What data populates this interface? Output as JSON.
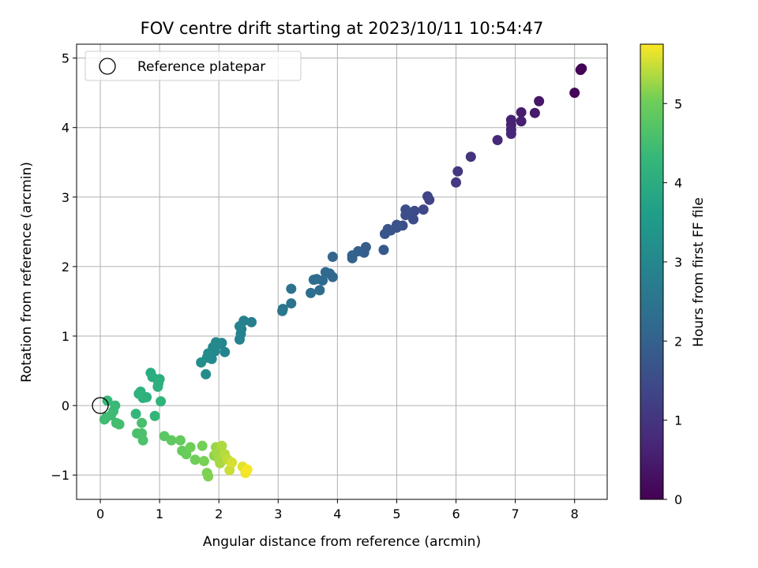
{
  "chart_data": {
    "type": "scatter",
    "title": "FOV centre drift starting at 2023/10/11 10:54:47",
    "xlabel": "Angular distance from reference (arcmin)",
    "ylabel": "Rotation from reference (arcmin)",
    "xlim": [
      -0.4,
      8.55
    ],
    "ylim": [
      -1.35,
      5.2
    ],
    "xticks": [
      0,
      1,
      2,
      3,
      4,
      5,
      6,
      7,
      8
    ],
    "yticks": [
      -1,
      0,
      1,
      2,
      3,
      4,
      5
    ],
    "xtick_labels": [
      "0",
      "1",
      "2",
      "3",
      "4",
      "5",
      "6",
      "7",
      "8"
    ],
    "ytick_labels": [
      "−1",
      "0",
      "1",
      "2",
      "3",
      "4",
      "5"
    ],
    "grid": true,
    "legend_position": "top-left",
    "legend": [
      {
        "label": "Reference platepar",
        "marker": "open-circle"
      }
    ],
    "reference_point": {
      "x": 0,
      "y": 0
    },
    "colormap": "viridis",
    "colorbar": {
      "label": "Hours from first FF file",
      "range": [
        0,
        5.75
      ],
      "ticks": [
        0,
        1,
        2,
        3,
        4,
        5
      ],
      "tick_labels": [
        "0",
        "1",
        "2",
        "3",
        "4",
        "5"
      ]
    },
    "points": [
      {
        "x": 8.12,
        "y": 4.85,
        "c": 0.02
      },
      {
        "x": 8.1,
        "y": 4.83,
        "c": 0.05
      },
      {
        "x": 8.0,
        "y": 4.5,
        "c": 0.1
      },
      {
        "x": 7.4,
        "y": 4.38,
        "c": 0.4
      },
      {
        "x": 7.33,
        "y": 4.21,
        "c": 0.45
      },
      {
        "x": 7.1,
        "y": 4.22,
        "c": 0.5
      },
      {
        "x": 7.1,
        "y": 4.09,
        "c": 0.55
      },
      {
        "x": 6.93,
        "y": 4.11,
        "c": 0.6
      },
      {
        "x": 6.93,
        "y": 4.04,
        "c": 0.63
      },
      {
        "x": 6.93,
        "y": 3.97,
        "c": 0.66
      },
      {
        "x": 6.93,
        "y": 3.91,
        "c": 0.7
      },
      {
        "x": 6.7,
        "y": 3.82,
        "c": 0.75
      },
      {
        "x": 6.25,
        "y": 3.58,
        "c": 0.95
      },
      {
        "x": 6.03,
        "y": 3.37,
        "c": 1.05
      },
      {
        "x": 6.0,
        "y": 3.21,
        "c": 1.1
      },
      {
        "x": 5.55,
        "y": 2.96,
        "c": 1.3
      },
      {
        "x": 5.52,
        "y": 3.01,
        "c": 1.35
      },
      {
        "x": 5.45,
        "y": 2.82,
        "c": 1.4
      },
      {
        "x": 5.3,
        "y": 2.8,
        "c": 1.45
      },
      {
        "x": 5.28,
        "y": 2.68,
        "c": 1.5
      },
      {
        "x": 5.2,
        "y": 2.78,
        "c": 1.52
      },
      {
        "x": 5.15,
        "y": 2.82,
        "c": 1.55
      },
      {
        "x": 5.15,
        "y": 2.74,
        "c": 1.57
      },
      {
        "x": 5.1,
        "y": 2.59,
        "c": 1.6
      },
      {
        "x": 5.0,
        "y": 2.56,
        "c": 1.65
      },
      {
        "x": 5.0,
        "y": 2.6,
        "c": 1.67
      },
      {
        "x": 4.9,
        "y": 2.52,
        "c": 1.7
      },
      {
        "x": 4.85,
        "y": 2.54,
        "c": 1.72
      },
      {
        "x": 4.8,
        "y": 2.47,
        "c": 1.75
      },
      {
        "x": 4.78,
        "y": 2.24,
        "c": 1.8
      },
      {
        "x": 4.48,
        "y": 2.28,
        "c": 1.9
      },
      {
        "x": 4.45,
        "y": 2.2,
        "c": 1.93
      },
      {
        "x": 4.35,
        "y": 2.22,
        "c": 1.96
      },
      {
        "x": 4.25,
        "y": 2.12,
        "c": 2.0
      },
      {
        "x": 4.25,
        "y": 2.16,
        "c": 2.02
      },
      {
        "x": 3.92,
        "y": 2.14,
        "c": 2.1
      },
      {
        "x": 3.92,
        "y": 1.85,
        "c": 2.15
      },
      {
        "x": 3.87,
        "y": 1.9,
        "c": 2.18
      },
      {
        "x": 3.8,
        "y": 1.92,
        "c": 2.2
      },
      {
        "x": 3.75,
        "y": 1.8,
        "c": 2.23
      },
      {
        "x": 3.7,
        "y": 1.66,
        "c": 2.26
      },
      {
        "x": 3.65,
        "y": 1.82,
        "c": 2.28
      },
      {
        "x": 3.6,
        "y": 1.81,
        "c": 2.3
      },
      {
        "x": 3.55,
        "y": 1.62,
        "c": 2.33
      },
      {
        "x": 3.22,
        "y": 1.68,
        "c": 2.45
      },
      {
        "x": 3.22,
        "y": 1.47,
        "c": 2.5
      },
      {
        "x": 3.08,
        "y": 1.39,
        "c": 2.55
      },
      {
        "x": 3.07,
        "y": 1.36,
        "c": 2.58
      },
      {
        "x": 2.55,
        "y": 1.2,
        "c": 2.75
      },
      {
        "x": 2.42,
        "y": 1.22,
        "c": 2.8
      },
      {
        "x": 2.38,
        "y": 1.1,
        "c": 2.83
      },
      {
        "x": 2.37,
        "y": 1.03,
        "c": 2.85
      },
      {
        "x": 2.35,
        "y": 0.95,
        "c": 2.88
      },
      {
        "x": 2.35,
        "y": 1.14,
        "c": 2.9
      },
      {
        "x": 2.1,
        "y": 0.77,
        "c": 2.95
      },
      {
        "x": 2.05,
        "y": 0.9,
        "c": 2.97
      },
      {
        "x": 2.0,
        "y": 0.88,
        "c": 3.0
      },
      {
        "x": 1.95,
        "y": 0.91,
        "c": 3.02
      },
      {
        "x": 1.93,
        "y": 0.78,
        "c": 3.04
      },
      {
        "x": 1.9,
        "y": 0.84,
        "c": 3.06
      },
      {
        "x": 1.88,
        "y": 0.67,
        "c": 3.08
      },
      {
        "x": 1.82,
        "y": 0.75,
        "c": 3.1
      },
      {
        "x": 1.8,
        "y": 0.69,
        "c": 3.12
      },
      {
        "x": 1.78,
        "y": 0.45,
        "c": 3.15
      },
      {
        "x": 1.7,
        "y": 0.62,
        "c": 3.2
      },
      {
        "x": 0.85,
        "y": 0.47,
        "c": 4.0
      },
      {
        "x": 0.88,
        "y": 0.41,
        "c": 4.02
      },
      {
        "x": 1.0,
        "y": 0.38,
        "c": 4.04
      },
      {
        "x": 0.98,
        "y": 0.32,
        "c": 4.06
      },
      {
        "x": 0.97,
        "y": 0.27,
        "c": 4.08
      },
      {
        "x": 0.78,
        "y": 0.12,
        "c": 4.1
      },
      {
        "x": 0.72,
        "y": 0.11,
        "c": 4.12
      },
      {
        "x": 0.68,
        "y": 0.2,
        "c": 4.14
      },
      {
        "x": 0.65,
        "y": 0.17,
        "c": 4.16
      },
      {
        "x": 1.02,
        "y": 0.06,
        "c": 4.2
      },
      {
        "x": 0.92,
        "y": -0.15,
        "c": 4.25
      },
      {
        "x": 0.6,
        "y": -0.12,
        "c": 4.28
      },
      {
        "x": 0.12,
        "y": 0.07,
        "c": 4.35
      },
      {
        "x": 0.25,
        "y": 0.0,
        "c": 4.38
      },
      {
        "x": 0.22,
        "y": -0.08,
        "c": 4.4
      },
      {
        "x": 0.18,
        "y": -0.14,
        "c": 4.42
      },
      {
        "x": 0.1,
        "y": -0.17,
        "c": 4.44
      },
      {
        "x": 0.07,
        "y": -0.2,
        "c": 4.46
      },
      {
        "x": 0.27,
        "y": -0.25,
        "c": 4.48
      },
      {
        "x": 0.32,
        "y": -0.27,
        "c": 4.5
      },
      {
        "x": 0.7,
        "y": -0.25,
        "c": 4.55
      },
      {
        "x": 0.62,
        "y": -0.4,
        "c": 4.58
      },
      {
        "x": 0.7,
        "y": -0.4,
        "c": 4.6
      },
      {
        "x": 0.72,
        "y": -0.5,
        "c": 4.62
      },
      {
        "x": 1.08,
        "y": -0.44,
        "c": 4.8
      },
      {
        "x": 1.2,
        "y": -0.5,
        "c": 4.85
      },
      {
        "x": 1.35,
        "y": -0.5,
        "c": 4.9
      },
      {
        "x": 1.38,
        "y": -0.65,
        "c": 4.93
      },
      {
        "x": 1.45,
        "y": -0.7,
        "c": 4.96
      },
      {
        "x": 1.52,
        "y": -0.6,
        "c": 5.0
      },
      {
        "x": 1.6,
        "y": -0.78,
        "c": 5.03
      },
      {
        "x": 1.72,
        "y": -0.58,
        "c": 5.06
      },
      {
        "x": 1.75,
        "y": -0.8,
        "c": 5.08
      },
      {
        "x": 1.8,
        "y": -0.97,
        "c": 5.1
      },
      {
        "x": 1.82,
        "y": -1.02,
        "c": 5.12
      },
      {
        "x": 1.92,
        "y": -0.72,
        "c": 5.2
      },
      {
        "x": 1.95,
        "y": -0.6,
        "c": 5.25
      },
      {
        "x": 1.98,
        "y": -0.7,
        "c": 5.28
      },
      {
        "x": 2.0,
        "y": -0.77,
        "c": 5.3
      },
      {
        "x": 2.02,
        "y": -0.83,
        "c": 5.33
      },
      {
        "x": 2.05,
        "y": -0.58,
        "c": 5.36
      },
      {
        "x": 2.1,
        "y": -0.7,
        "c": 5.4
      },
      {
        "x": 2.15,
        "y": -0.78,
        "c": 5.45
      },
      {
        "x": 2.18,
        "y": -0.93,
        "c": 5.5
      },
      {
        "x": 2.22,
        "y": -0.82,
        "c": 5.55
      },
      {
        "x": 2.4,
        "y": -0.88,
        "c": 5.62
      },
      {
        "x": 2.45,
        "y": -0.97,
        "c": 5.68
      },
      {
        "x": 2.48,
        "y": -0.92,
        "c": 5.72
      }
    ]
  }
}
